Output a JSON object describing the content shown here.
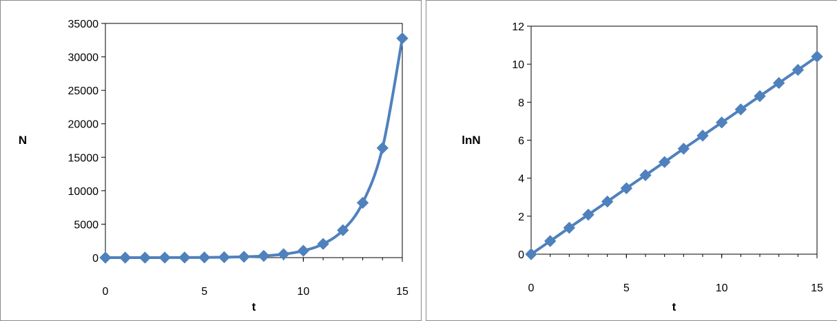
{
  "colors": {
    "series": "#4F81BD",
    "axis": "#000000",
    "border": "#8a8a8a"
  },
  "chart_data": [
    {
      "type": "line",
      "xlabel": "t",
      "ylabel": "N",
      "xlim": [
        0,
        15
      ],
      "ylim": [
        0,
        35000
      ],
      "xticks": [
        0,
        5,
        10,
        15
      ],
      "yticks": [
        0,
        5000,
        10000,
        15000,
        20000,
        25000,
        30000,
        35000
      ],
      "marker": "diamond",
      "grid": false,
      "series": [
        {
          "x": [
            0,
            1,
            2,
            3,
            4,
            5,
            6,
            7,
            8,
            9,
            10,
            11,
            12,
            13,
            14,
            15
          ],
          "values": [
            1,
            2,
            4,
            8,
            16,
            32,
            64,
            128,
            256,
            512,
            1024,
            2048,
            4096,
            8192,
            16384,
            32768
          ]
        }
      ]
    },
    {
      "type": "line",
      "xlabel": "t",
      "ylabel": "lnN",
      "xlim": [
        0,
        15
      ],
      "ylim": [
        0,
        12
      ],
      "xticks": [
        0,
        5,
        10,
        15
      ],
      "yticks": [
        0,
        2,
        4,
        6,
        8,
        10,
        12
      ],
      "marker": "diamond",
      "grid": false,
      "series": [
        {
          "x": [
            0,
            1,
            2,
            3,
            4,
            5,
            6,
            7,
            8,
            9,
            10,
            11,
            12,
            13,
            14,
            15
          ],
          "values": [
            0,
            0.69,
            1.39,
            2.08,
            2.77,
            3.47,
            4.16,
            4.85,
            5.55,
            6.24,
            6.93,
            7.62,
            8.32,
            9.01,
            9.7,
            10.4
          ]
        }
      ]
    }
  ]
}
